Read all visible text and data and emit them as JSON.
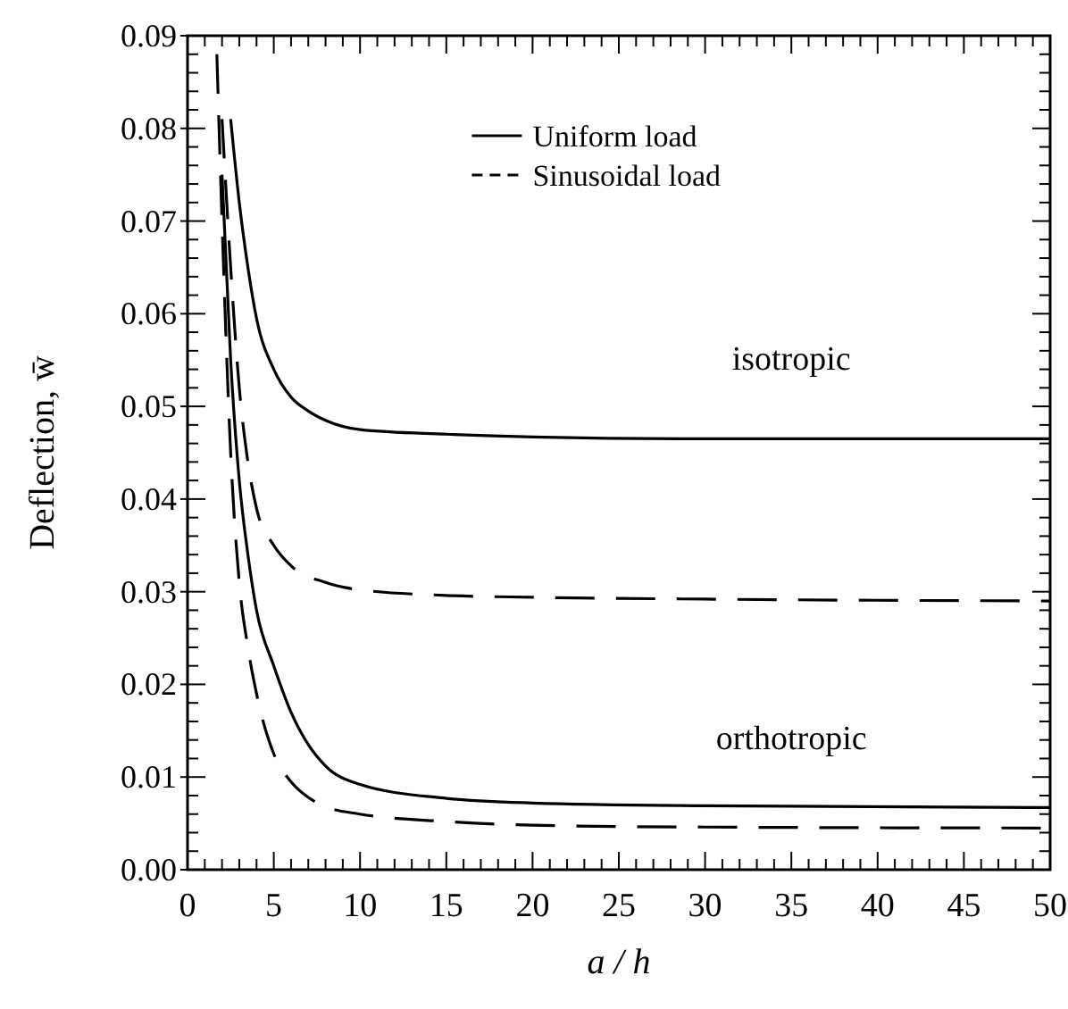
{
  "chart_data": {
    "type": "line",
    "xlabel": "a / h",
    "ylabel": "Deflection, w̄",
    "xlim": [
      0,
      50
    ],
    "xticks": [
      0,
      5,
      10,
      15,
      20,
      25,
      30,
      35,
      40,
      45,
      50
    ],
    "ylim": [
      0,
      0.09
    ],
    "yticks": [
      {
        "value": 0,
        "label": "0.00"
      },
      {
        "value": 0.01,
        "label": "0.01"
      },
      {
        "value": 0.02,
        "label": "0.02"
      },
      {
        "value": 0.03,
        "label": "0.03"
      },
      {
        "value": 0.04,
        "label": "0.04"
      },
      {
        "value": 0.05,
        "label": "0.05"
      },
      {
        "value": 0.06,
        "label": "0.06"
      },
      {
        "value": 0.07,
        "label": "0.07"
      },
      {
        "value": 0.08,
        "label": "0.08"
      },
      {
        "value": 0.09,
        "label": "0.09"
      }
    ],
    "grid": false,
    "legend": "top",
    "marker": "none",
    "annotations": [
      "isotropic",
      "orthotropic"
    ],
    "series": [
      {
        "name": "Uniform load",
        "color": "#000000",
        "line_style": "solid",
        "x": [
          2.5,
          3,
          3.5,
          4,
          5,
          6,
          7,
          8,
          10,
          15,
          20,
          30,
          50
        ],
        "values": [
          0.081,
          0.072,
          0.065,
          0.0595,
          0.054,
          0.051,
          0.0495,
          0.0485,
          0.0475,
          0.047,
          0.0467,
          0.0465,
          0.0465
        ]
      },
      {
        "name": "Sinusoidal load",
        "color": "#000000",
        "line_style": "dashed",
        "x": [
          2,
          2.5,
          3,
          3.5,
          4,
          5,
          6,
          8,
          10,
          15,
          20,
          30,
          50
        ],
        "values": [
          0.081,
          0.065,
          0.052,
          0.044,
          0.039,
          0.035,
          0.0328,
          0.031,
          0.0302,
          0.0296,
          0.0294,
          0.0292,
          0.029
        ]
      },
      {
        "color": "#000000",
        "line_style": "solid",
        "x": [
          2,
          2.5,
          3,
          3.5,
          4,
          5,
          6,
          7,
          8,
          10,
          15,
          20,
          30,
          50
        ],
        "values": [
          0.075,
          0.055,
          0.042,
          0.034,
          0.028,
          0.022,
          0.017,
          0.0135,
          0.0112,
          0.0092,
          0.0077,
          0.0072,
          0.0069,
          0.0067
        ]
      },
      {
        "color": "#000000",
        "line_style": "dashed",
        "x": [
          1.7,
          2,
          2.5,
          3,
          3.5,
          4,
          5,
          6,
          7,
          8,
          10,
          15,
          20,
          30,
          50
        ],
        "values": [
          0.088,
          0.07,
          0.045,
          0.031,
          0.024,
          0.019,
          0.0125,
          0.0095,
          0.0078,
          0.0068,
          0.006,
          0.0052,
          0.0048,
          0.0046,
          0.0045
        ]
      }
    ]
  }
}
